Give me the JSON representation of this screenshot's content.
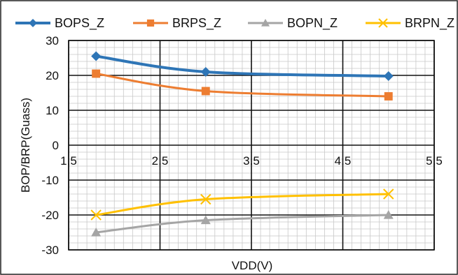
{
  "chart_data": {
    "type": "line",
    "title": "",
    "xlabel": "VDD(V)",
    "ylabel": "BOP/BRP(Guass)",
    "xlim": [
      1.5,
      5.5
    ],
    "ylim": [
      -30,
      30
    ],
    "x_ticks": [
      "1.5",
      "2.5",
      "3.5",
      "4.5",
      "5.5"
    ],
    "y_ticks": [
      "30",
      "20",
      "10",
      "0",
      "-10",
      "-20",
      "-30"
    ],
    "grid": true,
    "legend_position": "top",
    "series": [
      {
        "name": "BOPS_Z",
        "color": "#2e75b6",
        "marker": "diamond",
        "x": [
          1.8,
          3.0,
          5.0
        ],
        "y": [
          25.5,
          21.0,
          19.8
        ]
      },
      {
        "name": "BRPS_Z",
        "color": "#ed7d31",
        "marker": "square",
        "x": [
          1.8,
          3.0,
          5.0
        ],
        "y": [
          20.5,
          15.5,
          14.0
        ]
      },
      {
        "name": "BOPN_Z",
        "color": "#a5a5a5",
        "marker": "triangle",
        "x": [
          1.8,
          3.0,
          5.0
        ],
        "y": [
          -25.0,
          -21.5,
          -20.0
        ]
      },
      {
        "name": "BRPN_Z",
        "color": "#ffc000",
        "marker": "x",
        "x": [
          1.8,
          3.0,
          5.0
        ],
        "y": [
          -20.0,
          -15.5,
          -14.0
        ]
      }
    ]
  }
}
